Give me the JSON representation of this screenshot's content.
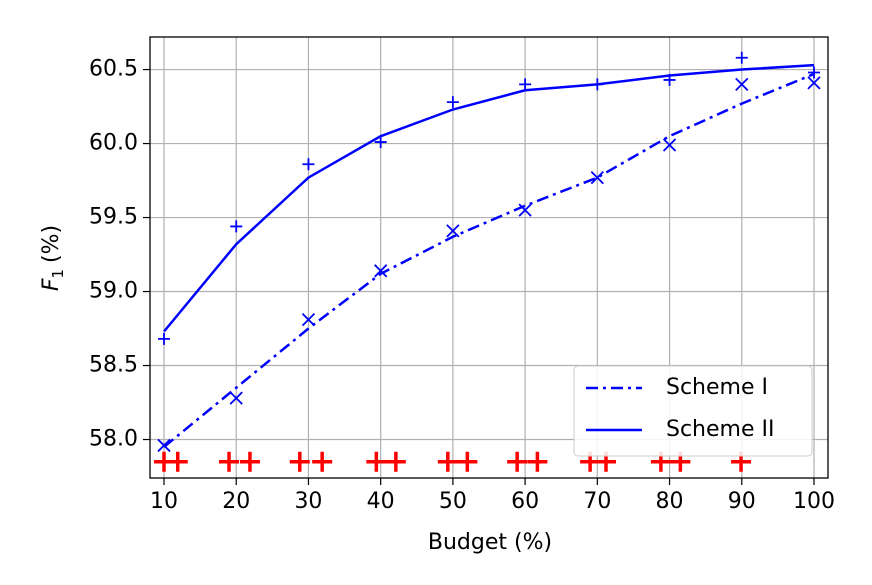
{
  "chart_data": {
    "type": "line",
    "xlabel": "Budget (%)",
    "ylabel": {
      "symbol": "F",
      "subscript": "1",
      "unit": "(%)"
    },
    "x": [
      10,
      20,
      30,
      40,
      50,
      60,
      70,
      80,
      90,
      100
    ],
    "series": [
      {
        "name": "Scheme I",
        "color": "#0000ff",
        "style": "dashdot",
        "values": [
          57.95,
          58.35,
          58.75,
          59.12,
          59.37,
          59.58,
          59.77,
          60.05,
          60.27,
          60.47
        ]
      },
      {
        "name": "Scheme II",
        "color": "#0000ff",
        "style": "solid",
        "values": [
          58.73,
          59.32,
          59.77,
          60.05,
          60.23,
          60.36,
          60.4,
          60.46,
          60.5,
          60.53
        ]
      }
    ],
    "scatter": [
      {
        "marker": "x",
        "color": "#0000ff",
        "values": [
          57.96,
          58.28,
          58.81,
          59.14,
          59.41,
          59.55,
          59.77,
          59.99,
          60.4,
          60.41
        ]
      },
      {
        "marker": "+",
        "color": "#0000ff",
        "values": [
          58.68,
          59.44,
          59.86,
          60.01,
          60.28,
          60.4,
          60.4,
          60.43,
          60.58,
          60.48
        ]
      },
      {
        "marker": "+",
        "color": "#ff0000",
        "x": [
          10,
          11.9,
          19.0,
          21.9,
          28.8,
          31.9,
          39.4,
          42.1,
          49.3,
          52.0,
          58.9,
          61.7,
          69.0,
          71.2,
          78.8,
          81.5,
          89.9
        ],
        "values": [
          57.85,
          57.85,
          57.85,
          57.85,
          57.85,
          57.85,
          57.85,
          57.85,
          57.85,
          57.85,
          57.85,
          57.85,
          57.85,
          57.85,
          57.85,
          57.85,
          57.85
        ]
      }
    ],
    "xlim": [
      8.06,
      101.94
    ],
    "ylim": [
      57.74,
      60.72
    ],
    "xticks": [
      10,
      20,
      30,
      40,
      50,
      60,
      70,
      80,
      90,
      100
    ],
    "yticks": [
      {
        "value": 58.0,
        "label": "58.0"
      },
      58.5,
      {
        "value": 59.0,
        "label": "59.0"
      },
      59.5,
      {
        "value": 60.0,
        "label": "60.0"
      },
      60.5
    ],
    "grid": true,
    "legend": "lower right"
  }
}
